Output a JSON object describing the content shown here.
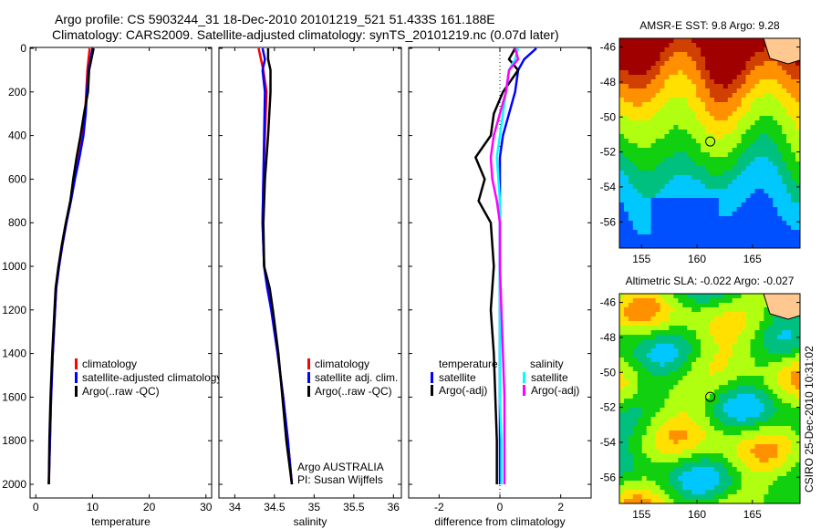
{
  "title_line1": "Argo profile: CS 5903244_31 18-Dec-2010 20101219_521 51.433S 161.188E",
  "title_line2": "Climatology: CARS2009. Satellite-adjusted climatology: synTS_20101219.nc (0.07d later)",
  "side_label": "CSIRO 25-Dec-2010 10:31:02",
  "colors": {
    "clim": "#ff0000",
    "sat": "#0000ff",
    "argo": "#000000",
    "sal_sat": "#00ffff",
    "sal_argo": "#ff00ff"
  },
  "chart_data": [
    {
      "type": "line",
      "xlabel": "temperature",
      "ylabel": "",
      "xlim": [
        -1,
        31
      ],
      "ylim": [
        2040,
        0
      ],
      "xticks": [
        "0",
        "10",
        "20",
        "30"
      ],
      "yticks": [
        "0",
        "200",
        "400",
        "600",
        "800",
        "1000",
        "1200",
        "1400",
        "1600",
        "1800",
        "2000"
      ],
      "legend": [
        "climatology",
        "satellite-adjusted climatology",
        "Argo(..raw -QC)"
      ],
      "depth": [
        0,
        100,
        200,
        300,
        400,
        500,
        600,
        700,
        800,
        900,
        1000,
        1100,
        1200,
        1400,
        1600,
        1800,
        2000
      ],
      "series": [
        {
          "name": "climatology",
          "values": [
            9.5,
            9.1,
            8.9,
            8.7,
            8.3,
            7.6,
            6.8,
            6.1,
            5.4,
            4.7,
            4.1,
            3.6,
            3.4,
            3.0,
            2.7,
            2.5,
            2.3
          ]
        },
        {
          "name": "satellite-adjusted climatology",
          "values": [
            10.0,
            9.3,
            9.0,
            8.8,
            8.4,
            7.7,
            6.9,
            6.2,
            5.4,
            4.7,
            4.1,
            3.6,
            3.4,
            3.0,
            2.7,
            2.5,
            2.3
          ]
        },
        {
          "name": "Argo(..raw -QC)",
          "values": [
            10.2,
            9.4,
            9.2,
            8.5,
            7.9,
            7.2,
            6.6,
            6.1,
            5.3,
            4.6,
            4.0,
            3.5,
            3.3,
            2.9,
            2.6,
            2.4,
            2.3
          ]
        }
      ]
    },
    {
      "type": "line",
      "xlabel": "salinity",
      "xlim": [
        33.8,
        36.1
      ],
      "ylim": [
        2040,
        0
      ],
      "xticks": [
        "34",
        "34.5",
        "35",
        "35.5",
        "36"
      ],
      "legend": [
        "climatology",
        "satellite adj. clim.",
        "Argo(..raw -QC)"
      ],
      "annotation": [
        "Argo AUSTRALIA",
        "PI: Susan Wijffels"
      ],
      "depth": [
        0,
        50,
        100,
        200,
        400,
        600,
        800,
        1000,
        1100,
        1200,
        1400,
        1600,
        1800,
        2000
      ],
      "series": [
        {
          "name": "climatology",
          "values": [
            34.3,
            34.33,
            34.36,
            34.4,
            34.38,
            34.36,
            34.35,
            34.37,
            34.41,
            34.46,
            34.54,
            34.61,
            34.67,
            34.72
          ]
        },
        {
          "name": "satellite adj. clim.",
          "values": [
            34.35,
            34.38,
            34.35,
            34.38,
            34.37,
            34.36,
            34.35,
            34.37,
            34.41,
            34.46,
            34.54,
            34.61,
            34.67,
            34.72
          ]
        },
        {
          "name": "Argo(..raw -QC)",
          "values": [
            34.42,
            34.42,
            34.45,
            34.45,
            34.42,
            34.38,
            34.36,
            34.37,
            34.44,
            34.48,
            34.55,
            34.6,
            34.65,
            34.72
          ]
        }
      ]
    },
    {
      "type": "line",
      "xlabel": "difference from climatology",
      "xlim": [
        -3,
        3
      ],
      "ylim": [
        2040,
        0
      ],
      "xticks": [
        "-2",
        "0",
        "2"
      ],
      "legend": {
        "temperature": [
          "temperature",
          "satellite",
          "Argo(-adj)"
        ],
        "salinity": [
          "salinity",
          "satellite",
          "Argo(-adj)"
        ]
      },
      "depth": [
        0,
        50,
        100,
        200,
        300,
        400,
        500,
        600,
        700,
        800,
        1000,
        1200,
        1400,
        1600,
        1800,
        2000
      ],
      "series": [
        {
          "name": "temperature satellite",
          "values": [
            1.2,
            0.8,
            0.6,
            0.5,
            0.3,
            0.1,
            0.0,
            0.0,
            0.0,
            0.0,
            0.0,
            0.0,
            0.0,
            0.0,
            0.0,
            0.0
          ]
        },
        {
          "name": "temperature Argo(-adj)",
          "values": [
            0.5,
            0.3,
            0.6,
            0.1,
            -0.2,
            -0.3,
            -0.8,
            -0.5,
            -0.7,
            -0.3,
            -0.2,
            -0.3,
            -0.2,
            -0.15,
            -0.1,
            -0.1
          ]
        },
        {
          "name": "salinity satellite",
          "values": [
            0.6,
            0.5,
            0.3,
            0.2,
            0.1,
            0.0,
            -0.1,
            -0.05,
            0.0,
            0.0,
            0.0,
            0.0,
            0.0,
            0.0,
            0.05,
            0.05
          ]
        },
        {
          "name": "salinity Argo(-adj)",
          "values": [
            0.5,
            0.6,
            0.3,
            0.2,
            0.0,
            -0.2,
            -0.3,
            -0.25,
            -0.1,
            0.0,
            0.0,
            0.05,
            0.1,
            0.15,
            0.15,
            0.15
          ]
        }
      ]
    },
    {
      "type": "heatmap",
      "title": "AMSR-E SST: 9.8 Argo: 9.28",
      "xticks": [
        "155",
        "160",
        "165"
      ],
      "yticks": [
        "-46",
        "-48",
        "-50",
        "-52",
        "-54",
        "-56"
      ],
      "marker": {
        "lon": 161.2,
        "lat": -51.4
      }
    },
    {
      "type": "heatmap",
      "title": "Altimetric SLA: -0.022 Argo: -0.027",
      "xticks": [
        "155",
        "160",
        "165"
      ],
      "yticks": [
        "-46",
        "-48",
        "-50",
        "-52",
        "-54",
        "-56"
      ],
      "marker": {
        "lon": 161.2,
        "lat": -51.4
      }
    }
  ]
}
